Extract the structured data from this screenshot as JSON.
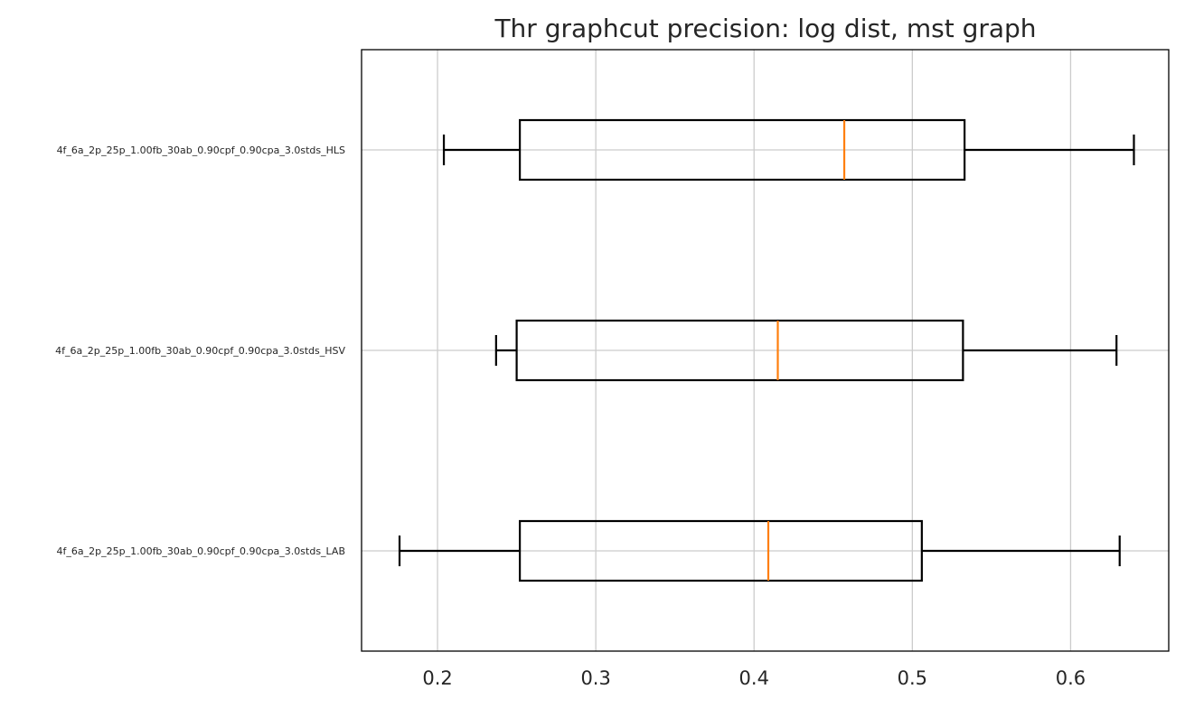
{
  "chart_data": {
    "type": "box",
    "orientation": "horizontal",
    "title": "Thr graphcut precision: log dist, mst graph",
    "xlabel": "",
    "ylabel": "",
    "xlim": [
      0.152,
      0.662
    ],
    "x_ticks": [
      0.2,
      0.3,
      0.4,
      0.5,
      0.6
    ],
    "x_tick_labels": [
      "0.2",
      "0.3",
      "0.4",
      "0.5",
      "0.6"
    ],
    "grid": true,
    "legend": "none",
    "box_color": "#000000",
    "median_color": "#ff7f0e",
    "grid_color": "#cccccc",
    "categories": [
      "4f_6a_2p_25p_1.00fb_30ab_0.90cpf_0.90cpa_3.0stds_HLS",
      "4f_6a_2p_25p_1.00fb_30ab_0.90cpf_0.90cpa_3.0stds_HSV",
      "4f_6a_2p_25p_1.00fb_30ab_0.90cpf_0.90cpa_3.0stds_LAB"
    ],
    "boxes": [
      {
        "whisker_low": 0.204,
        "q1": 0.252,
        "median": 0.457,
        "q3": 0.533,
        "whisker_high": 0.64
      },
      {
        "whisker_low": 0.237,
        "q1": 0.25,
        "median": 0.415,
        "q3": 0.532,
        "whisker_high": 0.629
      },
      {
        "whisker_low": 0.176,
        "q1": 0.252,
        "median": 0.409,
        "q3": 0.506,
        "whisker_high": 0.631
      }
    ]
  }
}
